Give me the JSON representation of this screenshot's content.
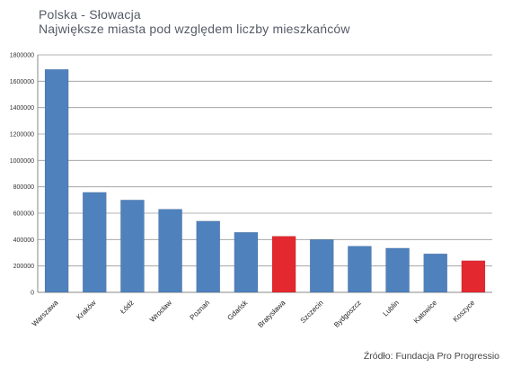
{
  "title": "Polska - Słowacja",
  "subtitle": "Największe miasta pod względem liczby mieszkańców",
  "source": "Źródło: Fundacja Pro Progressio",
  "chart_data": {
    "type": "bar",
    "title": "Polska - Słowacja",
    "subtitle": "Największe miasta pod względem liczby mieszkańców",
    "categories": [
      "Warszawa",
      "Kraków",
      "Łódź",
      "Wrocław",
      "Poznań",
      "Gdańsk",
      "Bratysława",
      "Szczecin",
      "Bydgoszcz",
      "Lublin",
      "Katowice",
      "Koszyce"
    ],
    "values": [
      1690000,
      758000,
      700000,
      630000,
      540000,
      455000,
      425000,
      400000,
      350000,
      335000,
      292000,
      240000
    ],
    "colors": [
      "#4f81bd",
      "#4f81bd",
      "#4f81bd",
      "#4f81bd",
      "#4f81bd",
      "#4f81bd",
      "#e3282f",
      "#4f81bd",
      "#4f81bd",
      "#4f81bd",
      "#4f81bd",
      "#e3282f"
    ],
    "yticks": [
      0,
      200000,
      400000,
      600000,
      800000,
      1000000,
      1200000,
      1400000,
      1600000,
      1800000
    ],
    "ytick_labels": [
      "0",
      "200000",
      "400000",
      "600000",
      "800000",
      "1000000",
      "1200000",
      "1400000",
      "1600000",
      "1800000"
    ],
    "ylim": [
      0,
      1800000
    ],
    "grid": true,
    "legend": "none"
  }
}
